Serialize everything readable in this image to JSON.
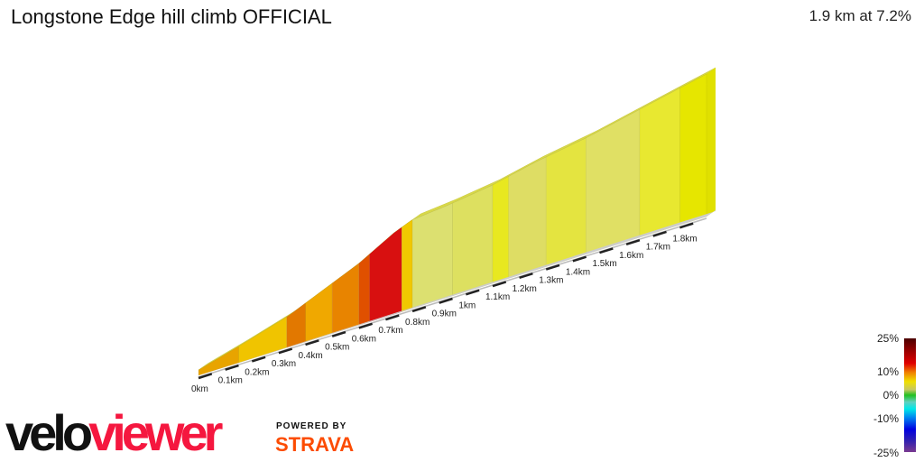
{
  "header": {
    "title": "Longstone Edge hill climb OFFICIAL",
    "summary": "1.9 km at 7.2%"
  },
  "profile": {
    "distance_km": 1.9,
    "axis_labels": [
      "0km",
      "0.1km",
      "0.2km",
      "0.3km",
      "0.4km",
      "0.5km",
      "0.6km",
      "0.7km",
      "0.8km",
      "0.9km",
      "1km",
      "1.1km",
      "1.2km",
      "1.3km",
      "1.4km",
      "1.5km",
      "1.6km",
      "1.7km",
      "1.8km"
    ],
    "segments": [
      {
        "from": 0,
        "to": 0.15,
        "color": "#e8a400"
      },
      {
        "from": 0.15,
        "to": 0.33,
        "color": "#f0c400"
      },
      {
        "from": 0.33,
        "to": 0.4,
        "color": "#e27800"
      },
      {
        "from": 0.4,
        "to": 0.5,
        "color": "#f0a800"
      },
      {
        "from": 0.5,
        "to": 0.6,
        "color": "#e88400"
      },
      {
        "from": 0.6,
        "to": 0.64,
        "color": "#e05000"
      },
      {
        "from": 0.64,
        "to": 0.76,
        "color": "#d81010"
      },
      {
        "from": 0.76,
        "to": 0.8,
        "color": "#f0c800"
      },
      {
        "from": 0.8,
        "to": 0.95,
        "color": "#dce070"
      },
      {
        "from": 0.95,
        "to": 1.1,
        "color": "#dde060"
      },
      {
        "from": 1.1,
        "to": 1.16,
        "color": "#e8e820"
      },
      {
        "from": 1.16,
        "to": 1.3,
        "color": "#dedd64"
      },
      {
        "from": 1.3,
        "to": 1.45,
        "color": "#e4e440"
      },
      {
        "from": 1.45,
        "to": 1.65,
        "color": "#e0e064"
      },
      {
        "from": 1.65,
        "to": 1.8,
        "color": "#e8e830"
      },
      {
        "from": 1.8,
        "to": 1.9,
        "color": "#e6e600"
      }
    ]
  },
  "legend": {
    "labels": [
      "25%",
      "10%",
      "0%",
      "-10%",
      "-25%"
    ]
  },
  "branding": {
    "logo_a": "velo",
    "logo_b": "viewer",
    "powered": "POWERED BY",
    "strava": "STRAVA"
  }
}
